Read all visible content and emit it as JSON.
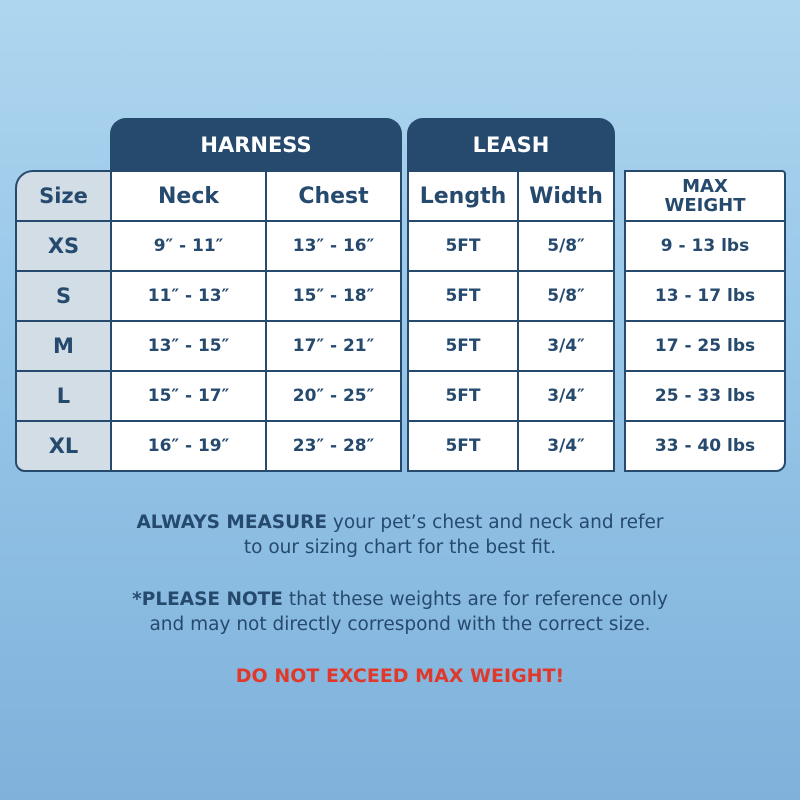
{
  "headers": {
    "harness": "HARNESS",
    "leash": "LEASH"
  },
  "columns": {
    "size": "Size",
    "neck": "Neck",
    "chest": "Chest",
    "length": "Length",
    "width": "Width",
    "max_weight": "MAX WEIGHT"
  },
  "rows": [
    {
      "size": "XS",
      "neck": "9″ - 11″",
      "chest": "13″ - 16″",
      "length": "5FT",
      "width": "5/8″",
      "weight": "9 - 13 lbs"
    },
    {
      "size": "S",
      "neck": "11″ - 13″",
      "chest": "15″ - 18″",
      "length": "5FT",
      "width": "5/8″",
      "weight": "13 - 17 lbs"
    },
    {
      "size": "M",
      "neck": "13″ - 15″",
      "chest": "17″ - 21″",
      "length": "5FT",
      "width": "3/4″",
      "weight": "17 - 25 lbs"
    },
    {
      "size": "L",
      "neck": "15″ - 17″",
      "chest": "20″ - 25″",
      "length": "5FT",
      "width": "3/4″",
      "weight": "25 - 33 lbs"
    },
    {
      "size": "XL",
      "neck": "16″ - 19″",
      "chest": "23″ - 28″",
      "length": "5FT",
      "width": "3/4″",
      "weight": "33 - 40 lbs"
    }
  ],
  "notes": {
    "measure_bold": "ALWAYS MEASURE",
    "measure_line1": " your pet’s chest and neck and refer",
    "measure_line2": "to our sizing chart for the best fit.",
    "please_bold": "*PLEASE NOTE",
    "please_line1": " that these weights are for reference only",
    "please_line2": "and may not directly correspond with the correct size.",
    "warning": "DO NOT EXCEED MAX WEIGHT!"
  },
  "colors": {
    "navy": "#264a6e",
    "warning_red": "#e0392b",
    "size_column": "#d3dde6"
  }
}
